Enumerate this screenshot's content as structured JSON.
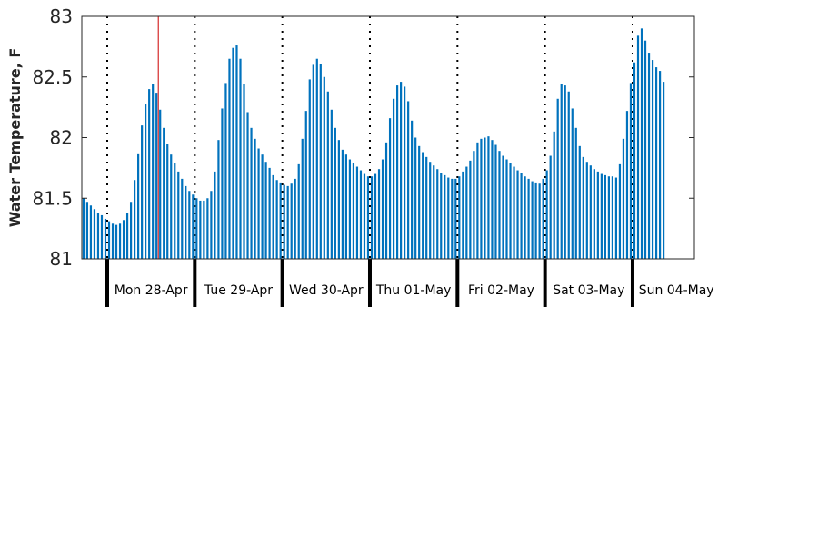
{
  "chart_data": {
    "type": "bar",
    "ylabel": "Water Temperature, F",
    "ylim": [
      81,
      83
    ],
    "yticks": [
      81,
      81.5,
      82,
      82.5,
      83
    ],
    "ytick_labels": [
      "81",
      "81.5",
      "82",
      "82.5",
      "83"
    ],
    "days": [
      "Mon 28-Apr",
      "Tue 29-Apr",
      "Wed 30-Apr",
      "Thu 01-May",
      "Fri 02-May",
      "Sat 03-May",
      "Sun 04-May"
    ],
    "bar_color": "#0072bd",
    "marker_color": "#cc0000",
    "marker_time_hour": 21,
    "series": [
      {
        "values": [
          81.5,
          81.47,
          81.44,
          81.41,
          81.38,
          81.36,
          81.33,
          81.31,
          81.29,
          81.28,
          81.29,
          81.32,
          81.38,
          81.47,
          81.65,
          81.87,
          82.1,
          82.28,
          82.4,
          82.44,
          82.37,
          82.23,
          82.08,
          81.95,
          81.86,
          81.79,
          81.72,
          81.66,
          81.6,
          81.56,
          81.53,
          81.5,
          81.48,
          81.48,
          81.5,
          81.56,
          81.72,
          81.98,
          82.24,
          82.45,
          82.65,
          82.74,
          82.76,
          82.65,
          82.44,
          82.21,
          82.08,
          81.99,
          81.91,
          81.86,
          81.8,
          81.75,
          81.69,
          81.65,
          81.63,
          81.61,
          81.6,
          81.62,
          81.66,
          81.78,
          81.99,
          82.22,
          82.48,
          82.6,
          82.65,
          82.61,
          82.5,
          82.38,
          82.23,
          82.08,
          81.98,
          81.9,
          81.86,
          81.82,
          81.79,
          81.76,
          81.73,
          81.7,
          81.68,
          81.68,
          81.7,
          81.74,
          81.82,
          81.96,
          82.16,
          82.32,
          82.43,
          82.46,
          82.42,
          82.3,
          82.14,
          82.0,
          81.93,
          81.88,
          81.84,
          81.8,
          81.77,
          81.74,
          81.71,
          81.69,
          81.67,
          81.66,
          81.66,
          81.68,
          81.72,
          81.76,
          81.81,
          81.89,
          81.96,
          81.99,
          82.0,
          82.01,
          81.98,
          81.94,
          81.89,
          81.85,
          81.82,
          81.79,
          81.76,
          81.73,
          81.71,
          81.68,
          81.66,
          81.64,
          81.63,
          81.62,
          81.66,
          81.73,
          81.85,
          82.05,
          82.32,
          82.44,
          82.43,
          82.38,
          82.24,
          82.08,
          81.93,
          81.84,
          81.8,
          81.77,
          81.74,
          81.72,
          81.7,
          81.69,
          81.68,
          81.68,
          81.67,
          81.78,
          81.99,
          82.22,
          82.45,
          82.62,
          82.84,
          82.9,
          82.8,
          82.7,
          82.64,
          82.58,
          82.55,
          82.46
        ]
      }
    ]
  }
}
